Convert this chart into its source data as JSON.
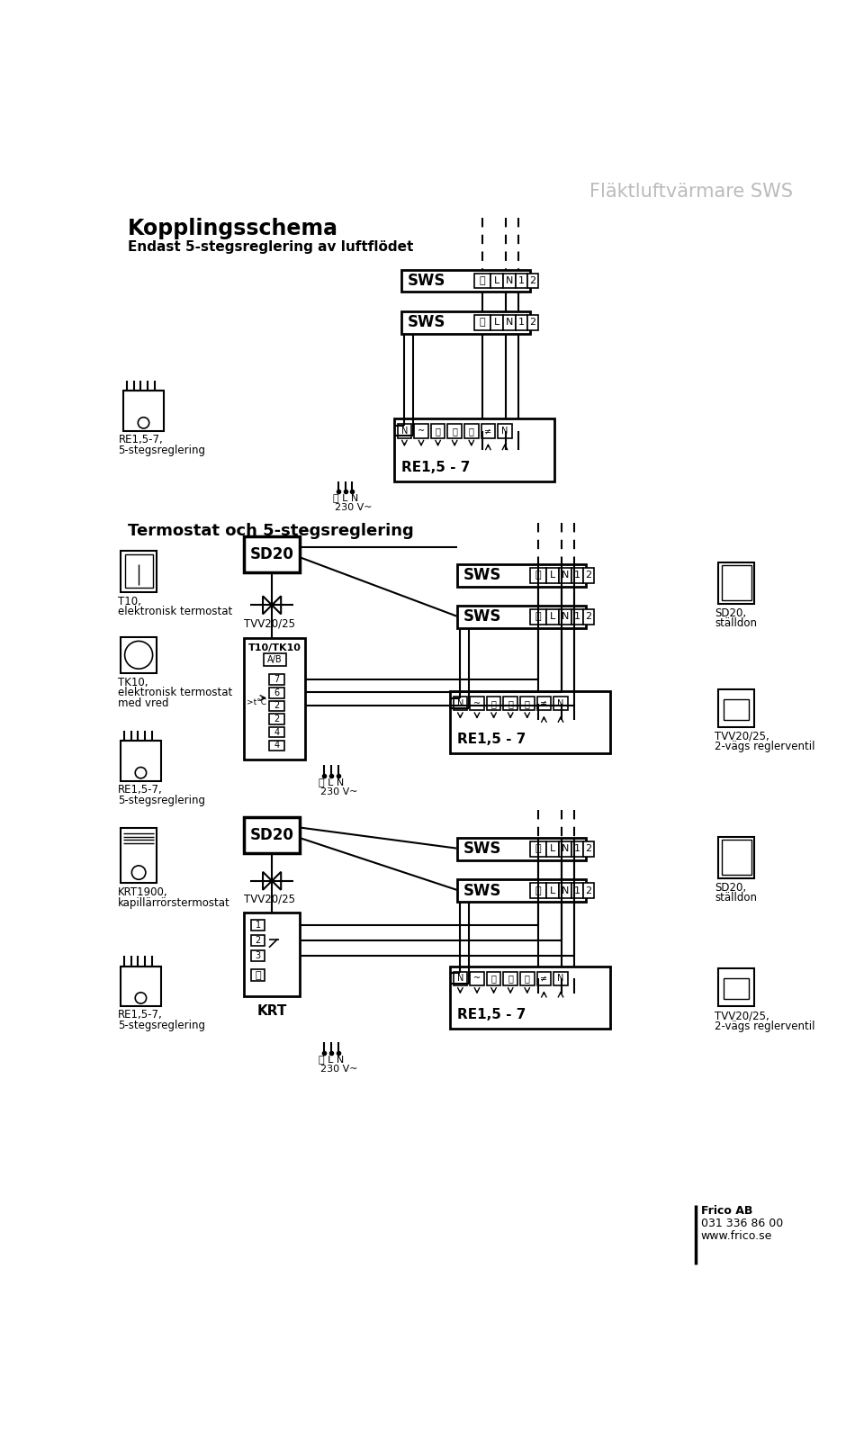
{
  "title": "Fläktluftvärmare SWS",
  "title_color": "#bbbbbb",
  "bg_color": "#ffffff",
  "line_color": "#000000",
  "section1_title": "Kopplingsschema",
  "section1_sub": "Endast 5-stegsreglering av luftflödet",
  "section2_title": "Termostat och 5-stegsreglering",
  "section3_label": "KRT1900,\nkapillärrörstermostat",
  "footer_company": "Frico AB",
  "footer_phone": "031 336 86 00",
  "footer_web": "www.frico.se"
}
